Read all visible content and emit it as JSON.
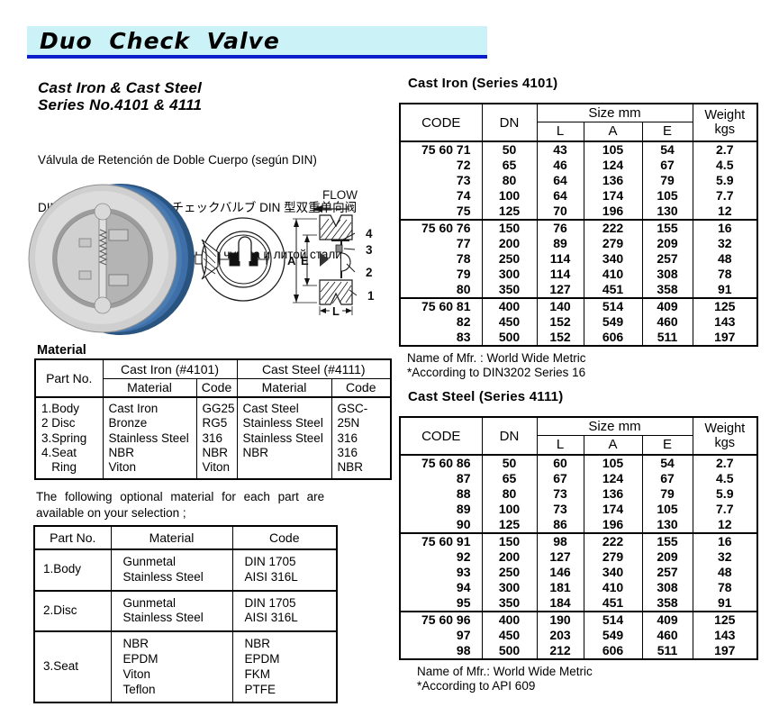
{
  "header": {
    "title": "Duo Check Valve"
  },
  "intro": {
    "line1": "Cast Iron & Cast Steel",
    "line2": "Series No.4101 & 4111",
    "desc_es": "Válvula de Retención de Doble Cuerpo (según DIN)",
    "desc_ja": "DIN 型鋳鉄・鋳鋼デュオチェックバルブ DIN 型双重单向阀",
    "desc_ru": "Двойные обратные клапаны   из чугуна и литой стали"
  },
  "figure": {
    "flow_label": "FLOW",
    "dim_a": "A",
    "dim_e": "E",
    "dim_l": "L",
    "callout_4": "4",
    "callout_3": "3",
    "callout_2": "2",
    "callout_1": "1"
  },
  "material_section": {
    "heading": "Material",
    "part_no_label": "Part No.",
    "cast_iron_label": "Cast Iron (#4101)",
    "cast_steel_label": "Cast Steel (#4111)",
    "material_label": "Material",
    "code_label": "Code",
    "parts": "1.Body\n2 Disc\n3.Spring\n4.Seat\n   Ring",
    "cast_iron_material": "Cast Iron\nBronze\nStainless Steel\nNBR\nViton",
    "cast_iron_code": "GG25\nRG5\n316\nNBR\nViton",
    "cast_steel_material": "Cast Steel\nStainless Steel\nStainless Steel\nNBR",
    "cast_steel_code": "GSC-25N\n316\n316\nNBR"
  },
  "optional_section": {
    "intro_line1": "The following optional material for each part are",
    "intro_line2": "available on your selection ;",
    "headers": {
      "part": "Part No.",
      "material": "Material",
      "code": "Code"
    },
    "rows": [
      {
        "part": "1.Body",
        "material": "Gunmetal\nStainless Steel",
        "code": "DIN 1705\nAISI 316L"
      },
      {
        "part": "2.Disc",
        "material": "Gunmetal\nStainless Steel",
        "code": "DIN 1705\nAISI 316L"
      },
      {
        "part": "3.Seat",
        "material": "NBR\nEPDM\nViton\nTeflon",
        "code": "NBR\nEPDM\nFKM\nPTFE"
      }
    ]
  },
  "size_tables": [
    {
      "heading": "Cast Iron (Series 4101)",
      "headers": {
        "code": "CODE",
        "dn": "DN",
        "size": "Size mm",
        "l": "L",
        "a": "A",
        "e": "E",
        "weight": "Weight",
        "kgs": "kgs"
      },
      "groups": [
        {
          "rows": [
            [
              "75 60 71",
              "50",
              "43",
              "105",
              "54",
              "2.7"
            ],
            [
              "72",
              "65",
              "46",
              "124",
              "67",
              "4.5"
            ],
            [
              "73",
              "80",
              "64",
              "136",
              "79",
              "5.9"
            ],
            [
              "74",
              "100",
              "64",
              "174",
              "105",
              "7.7"
            ],
            [
              "75",
              "125",
              "70",
              "196",
              "130",
              "12"
            ]
          ]
        },
        {
          "rows": [
            [
              "75 60 76",
              "150",
              "76",
              "222",
              "155",
              "16"
            ],
            [
              "77",
              "200",
              "89",
              "279",
              "209",
              "32"
            ],
            [
              "78",
              "250",
              "114",
              "340",
              "257",
              "48"
            ],
            [
              "79",
              "300",
              "114",
              "410",
              "308",
              "78"
            ],
            [
              "80",
              "350",
              "127",
              "451",
              "358",
              "91"
            ]
          ]
        },
        {
          "rows": [
            [
              "75 60 81",
              "400",
              "140",
              "514",
              "409",
              "125"
            ],
            [
              "82",
              "450",
              "152",
              "549",
              "460",
              "143"
            ],
            [
              "83",
              "500",
              "152",
              "606",
              "511",
              "197"
            ]
          ]
        }
      ],
      "notes": [
        "Name of Mfr. : World Wide Metric",
        "*According to DIN3202 Series 16"
      ]
    },
    {
      "heading": "Cast Steel (Series 4111)",
      "headers": {
        "code": "CODE",
        "dn": "DN",
        "size": "Size mm",
        "l": "L",
        "a": "A",
        "e": "E",
        "weight": "Weight",
        "kgs": "kgs"
      },
      "groups": [
        {
          "rows": [
            [
              "75 60 86",
              "50",
              "60",
              "105",
              "54",
              "2.7"
            ],
            [
              "87",
              "65",
              "67",
              "124",
              "67",
              "4.5"
            ],
            [
              "88",
              "80",
              "73",
              "136",
              "79",
              "5.9"
            ],
            [
              "89",
              "100",
              "73",
              "174",
              "105",
              "7.7"
            ],
            [
              "90",
              "125",
              "86",
              "196",
              "130",
              "12"
            ]
          ]
        },
        {
          "rows": [
            [
              "75 60 91",
              "150",
              "98",
              "222",
              "155",
              "16"
            ],
            [
              "92",
              "200",
              "127",
              "279",
              "209",
              "32"
            ],
            [
              "93",
              "250",
              "146",
              "340",
              "257",
              "48"
            ],
            [
              "94",
              "300",
              "181",
              "410",
              "308",
              "78"
            ],
            [
              "95",
              "350",
              "184",
              "451",
              "358",
              "91"
            ]
          ]
        },
        {
          "rows": [
            [
              "75 60 96",
              "400",
              "190",
              "514",
              "409",
              "125"
            ],
            [
              "97",
              "450",
              "203",
              "549",
              "460",
              "143"
            ],
            [
              "98",
              "500",
              "212",
              "606",
              "511",
              "197"
            ]
          ]
        }
      ],
      "notes": [
        "Name of Mfr.: World Wide Metric",
        "*According to API 609"
      ]
    }
  ],
  "colors": {
    "title_band": "#cbf2f7",
    "title_rule": "#0a1ecb",
    "valve_body_blue": "#3f6fa9"
  }
}
